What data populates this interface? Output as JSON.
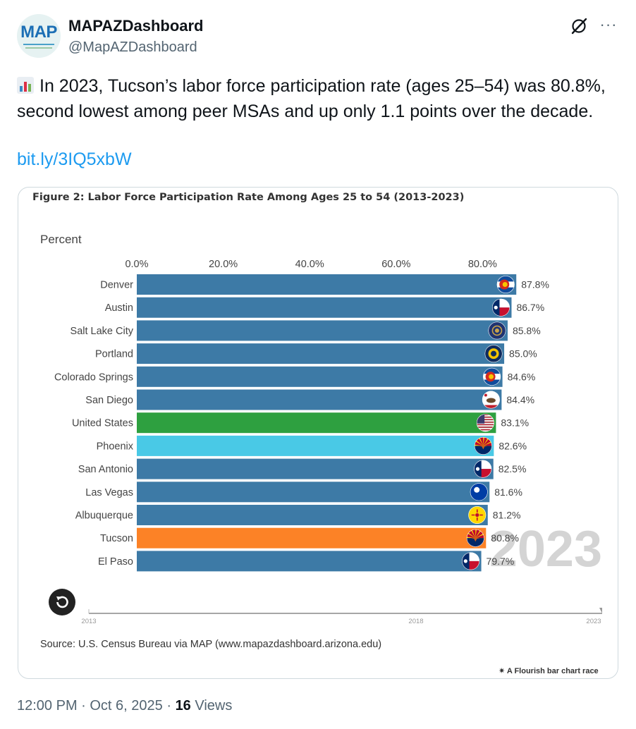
{
  "account": {
    "display_name": "MAPAZDashboard",
    "handle": "@MapAZDashboard",
    "avatar_text": "MAP",
    "avatar_icon": "map-logo"
  },
  "actions": {
    "grok_icon": "grok-slash-icon",
    "more_icon": "more-dots-icon",
    "more_label": "···"
  },
  "tweet": {
    "emoji": "bar-chart-emoji",
    "text": "In 2023, Tucson’s labor force participation rate (ages 25–54) was 80.8%, second lowest among peer MSAs and up only 1.1 points over the decade.",
    "link": "bit.ly/3IQ5xbW"
  },
  "chart_data": {
    "type": "bar",
    "orientation": "horizontal",
    "title": "Figure 2: Labor Force Participation Rate Among Ages 25 to 54 (2013-2023)",
    "ylabel": "Percent",
    "xlim": [
      0,
      88
    ],
    "x_ticks": [
      0,
      20,
      40,
      60,
      80
    ],
    "x_tick_labels": [
      "0.0%",
      "20.0%",
      "40.0%",
      "60.0%",
      "80.0%"
    ],
    "year": "2023",
    "categories": [
      "Denver",
      "Austin",
      "Salt Lake City",
      "Portland",
      "Colorado Springs",
      "San Diego",
      "United States",
      "Phoenix",
      "San Antonio",
      "Las Vegas",
      "Albuquerque",
      "Tucson",
      "El Paso"
    ],
    "values": [
      87.8,
      86.7,
      85.8,
      85.0,
      84.6,
      84.4,
      83.1,
      82.6,
      82.5,
      81.6,
      81.2,
      80.8,
      79.7
    ],
    "value_labels": [
      "87.8%",
      "86.7%",
      "85.8%",
      "85.0%",
      "84.6%",
      "84.4%",
      "83.1%",
      "82.6%",
      "82.5%",
      "81.6%",
      "81.2%",
      "80.8%",
      "79.7%"
    ],
    "colors": [
      "#3d7aa6",
      "#3d7aa6",
      "#3d7aa6",
      "#3d7aa6",
      "#3d7aa6",
      "#3d7aa6",
      "#2ea040",
      "#49c9e6",
      "#3d7aa6",
      "#3d7aa6",
      "#3d7aa6",
      "#fc8226",
      "#3d7aa6"
    ],
    "flags": [
      "colorado",
      "texas",
      "utah",
      "oregon",
      "colorado",
      "california",
      "usa",
      "arizona",
      "texas",
      "nevada",
      "new-mexico",
      "arizona",
      "texas"
    ],
    "timeline": {
      "start_label": "2013",
      "mid_label": "2018",
      "end_label": "2023",
      "start": 2013,
      "end": 2023,
      "current": 2023
    },
    "source": "Source: U.S. Census Bureau via MAP (www.mapazdashboard.arizona.edu)",
    "credit": "A Flourish bar chart race"
  },
  "footer": {
    "time": "12:00 PM · Oct 6, 2025 · ",
    "views_count": "16",
    "views_label": " Views"
  }
}
